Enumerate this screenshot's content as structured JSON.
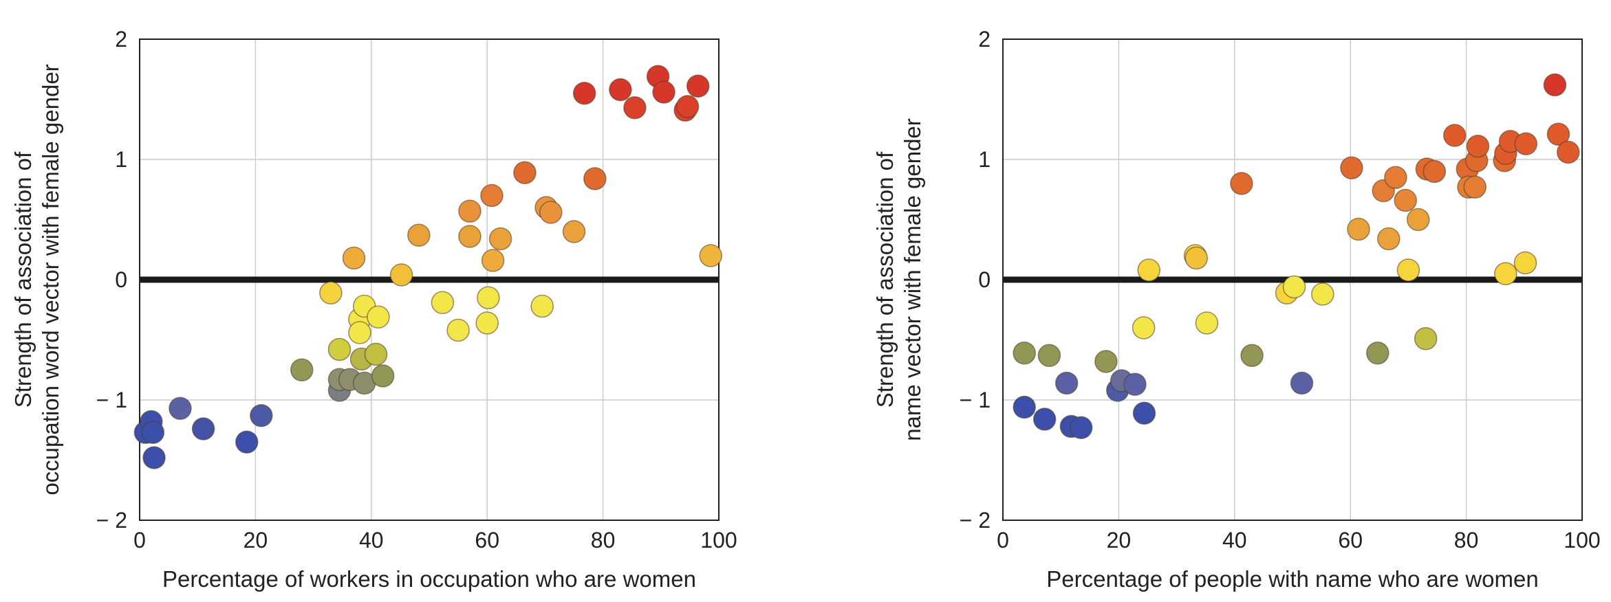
{
  "chart_data": [
    {
      "type": "scatter",
      "xlabel": "Percentage of workers in occupation who are women",
      "ylabel": [
        "Strength of association of",
        "occupation word vector with female gender"
      ],
      "xlim": [
        0,
        100
      ],
      "ylim": [
        -2,
        2
      ],
      "xticks": [
        "0",
        "20",
        "40",
        "60",
        "80",
        "100"
      ],
      "yticks": [
        "− 2",
        "− 1",
        "0",
        "1",
        "2"
      ],
      "grid": true,
      "zero_line": true,
      "points": [
        {
          "x": 1,
          "y": -1.27,
          "color": "#3b4fab"
        },
        {
          "x": 2,
          "y": -1.18,
          "color": "#3b4fab"
        },
        {
          "x": 2.3,
          "y": -1.27,
          "color": "#3b4fab"
        },
        {
          "x": 2.5,
          "y": -1.48,
          "color": "#3b4fab"
        },
        {
          "x": 7,
          "y": -1.07,
          "color": "#5a62a5"
        },
        {
          "x": 11,
          "y": -1.24,
          "color": "#4453a6"
        },
        {
          "x": 18.5,
          "y": -1.35,
          "color": "#3b4fab"
        },
        {
          "x": 21,
          "y": -1.13,
          "color": "#4d5aa5"
        },
        {
          "x": 28,
          "y": -0.75,
          "color": "#939755"
        },
        {
          "x": 33,
          "y": -0.11,
          "color": "#f5d33d"
        },
        {
          "x": 34.5,
          "y": -0.92,
          "color": "#7b7f83"
        },
        {
          "x": 34.5,
          "y": -0.83,
          "color": "#8c8e6e"
        },
        {
          "x": 34.5,
          "y": -0.58,
          "color": "#d0cd3e"
        },
        {
          "x": 36.3,
          "y": -0.83,
          "color": "#8c8e6e"
        },
        {
          "x": 37,
          "y": 0.18,
          "color": "#eeaa3a"
        },
        {
          "x": 38,
          "y": -0.33,
          "color": "#f3e648"
        },
        {
          "x": 38,
          "y": -0.44,
          "color": "#f3e648"
        },
        {
          "x": 38.3,
          "y": -0.66,
          "color": "#b8b447"
        },
        {
          "x": 38.8,
          "y": -0.86,
          "color": "#8c8e6e"
        },
        {
          "x": 38.8,
          "y": -0.22,
          "color": "#f3e648"
        },
        {
          "x": 40.8,
          "y": -0.62,
          "color": "#c2c042"
        },
        {
          "x": 41.2,
          "y": -0.31,
          "color": "#f3e648"
        },
        {
          "x": 42,
          "y": -0.8,
          "color": "#939755"
        },
        {
          "x": 45.2,
          "y": 0.04,
          "color": "#f1bf3a"
        },
        {
          "x": 48.2,
          "y": 0.37,
          "color": "#eba13a"
        },
        {
          "x": 52.3,
          "y": -0.19,
          "color": "#f3e648"
        },
        {
          "x": 55,
          "y": -0.42,
          "color": "#f3e648"
        },
        {
          "x": 57,
          "y": 0.57,
          "color": "#ea923a"
        },
        {
          "x": 57,
          "y": 0.36,
          "color": "#eba13a"
        },
        {
          "x": 60,
          "y": -0.36,
          "color": "#f3e648"
        },
        {
          "x": 60.2,
          "y": -0.15,
          "color": "#f3e648"
        },
        {
          "x": 60.8,
          "y": 0.7,
          "color": "#e57e34"
        },
        {
          "x": 61,
          "y": 0.16,
          "color": "#eeaa3a"
        },
        {
          "x": 62.3,
          "y": 0.34,
          "color": "#eba13a"
        },
        {
          "x": 66.5,
          "y": 0.89,
          "color": "#e06a2d"
        },
        {
          "x": 69.5,
          "y": -0.22,
          "color": "#f3e648"
        },
        {
          "x": 70.2,
          "y": 0.6,
          "color": "#ea923a"
        },
        {
          "x": 71,
          "y": 0.56,
          "color": "#ea923a"
        },
        {
          "x": 75,
          "y": 0.4,
          "color": "#eba13a"
        },
        {
          "x": 76.8,
          "y": 1.55,
          "color": "#d6372a"
        },
        {
          "x": 78.6,
          "y": 0.84,
          "color": "#e06a2d"
        },
        {
          "x": 83,
          "y": 1.58,
          "color": "#d6372a"
        },
        {
          "x": 85.5,
          "y": 1.43,
          "color": "#d9412b"
        },
        {
          "x": 89.5,
          "y": 1.69,
          "color": "#d6372a"
        },
        {
          "x": 90.5,
          "y": 1.56,
          "color": "#d6372a"
        },
        {
          "x": 94.2,
          "y": 1.41,
          "color": "#d9412b"
        },
        {
          "x": 94.6,
          "y": 1.44,
          "color": "#d9412b"
        },
        {
          "x": 96.4,
          "y": 1.61,
          "color": "#d6372a"
        },
        {
          "x": 98.6,
          "y": 0.2,
          "color": "#efb43a"
        }
      ]
    },
    {
      "type": "scatter",
      "xlabel": "Percentage of people with name who are women",
      "ylabel": [
        "Strength of association of",
        "name vector with female gender"
      ],
      "xlim": [
        0,
        100
      ],
      "ylim": [
        -2,
        2
      ],
      "xticks": [
        "0",
        "20",
        "40",
        "60",
        "80",
        "100"
      ],
      "yticks": [
        "− 2",
        "− 1",
        "0",
        "1",
        "2"
      ],
      "grid": true,
      "zero_line": true,
      "points": [
        {
          "x": 3.7,
          "y": -0.61,
          "color": "#939755"
        },
        {
          "x": 3.7,
          "y": -1.06,
          "color": "#3b4fab"
        },
        {
          "x": 7.2,
          "y": -1.16,
          "color": "#3b4fab"
        },
        {
          "x": 8,
          "y": -0.63,
          "color": "#939755"
        },
        {
          "x": 11,
          "y": -0.86,
          "color": "#5a62a5"
        },
        {
          "x": 11.8,
          "y": -1.22,
          "color": "#3b4fab"
        },
        {
          "x": 13.5,
          "y": -1.23,
          "color": "#3b4fab"
        },
        {
          "x": 17.8,
          "y": -0.68,
          "color": "#939755"
        },
        {
          "x": 19.8,
          "y": -0.92,
          "color": "#4d5aa5"
        },
        {
          "x": 20.5,
          "y": -0.84,
          "color": "#676c99"
        },
        {
          "x": 22.8,
          "y": -0.87,
          "color": "#5a62a5"
        },
        {
          "x": 24.4,
          "y": -1.11,
          "color": "#3b4fab"
        },
        {
          "x": 24.3,
          "y": -0.4,
          "color": "#f3e648"
        },
        {
          "x": 25.2,
          "y": 0.08,
          "color": "#f6d43b"
        },
        {
          "x": 33.2,
          "y": 0.2,
          "color": "#f6d43b"
        },
        {
          "x": 33.4,
          "y": 0.18,
          "color": "#f1c13a"
        },
        {
          "x": 35.2,
          "y": -0.36,
          "color": "#f3e648"
        },
        {
          "x": 41.2,
          "y": 0.8,
          "color": "#e06a2d"
        },
        {
          "x": 43,
          "y": -0.63,
          "color": "#939755"
        },
        {
          "x": 49,
          "y": -0.11,
          "color": "#f6d43b"
        },
        {
          "x": 50.3,
          "y": -0.06,
          "color": "#f3e648"
        },
        {
          "x": 51.6,
          "y": -0.86,
          "color": "#5a62a5"
        },
        {
          "x": 55.2,
          "y": -0.12,
          "color": "#f3e648"
        },
        {
          "x": 60.2,
          "y": 0.93,
          "color": "#e06a2d"
        },
        {
          "x": 61.4,
          "y": 0.42,
          "color": "#eba13a"
        },
        {
          "x": 64.7,
          "y": -0.61,
          "color": "#939755"
        },
        {
          "x": 65.7,
          "y": 0.74,
          "color": "#e57e34"
        },
        {
          "x": 66.6,
          "y": 0.34,
          "color": "#eba13a"
        },
        {
          "x": 67.8,
          "y": 0.85,
          "color": "#e57e34"
        },
        {
          "x": 69.5,
          "y": 0.66,
          "color": "#e88636"
        },
        {
          "x": 70,
          "y": 0.08,
          "color": "#f6d43b"
        },
        {
          "x": 71.7,
          "y": 0.5,
          "color": "#eba13a"
        },
        {
          "x": 73,
          "y": -0.49,
          "color": "#c2c042"
        },
        {
          "x": 73.2,
          "y": 0.92,
          "color": "#e06a2d"
        },
        {
          "x": 74.5,
          "y": 0.9,
          "color": "#e06a2d"
        },
        {
          "x": 78,
          "y": 1.2,
          "color": "#e05a2c"
        },
        {
          "x": 80.2,
          "y": 0.92,
          "color": "#e06a2d"
        },
        {
          "x": 80.4,
          "y": 0.77,
          "color": "#e57e34"
        },
        {
          "x": 81.5,
          "y": 0.77,
          "color": "#e57e34"
        },
        {
          "x": 81.8,
          "y": 0.99,
          "color": "#e06a2d"
        },
        {
          "x": 82,
          "y": 1.11,
          "color": "#e05a2c"
        },
        {
          "x": 86.6,
          "y": 0.99,
          "color": "#e06a2d"
        },
        {
          "x": 86.8,
          "y": 1.05,
          "color": "#e05a2c"
        },
        {
          "x": 86.8,
          "y": 0.05,
          "color": "#f6d43b"
        },
        {
          "x": 87.6,
          "y": 1.15,
          "color": "#e05a2c"
        },
        {
          "x": 90.3,
          "y": 1.13,
          "color": "#e05a2c"
        },
        {
          "x": 90.2,
          "y": 0.14,
          "color": "#f6d43b"
        },
        {
          "x": 95.3,
          "y": 1.62,
          "color": "#d6372a"
        },
        {
          "x": 95.9,
          "y": 1.21,
          "color": "#e05a2c"
        },
        {
          "x": 97.6,
          "y": 1.06,
          "color": "#e05a2c"
        }
      ]
    }
  ]
}
